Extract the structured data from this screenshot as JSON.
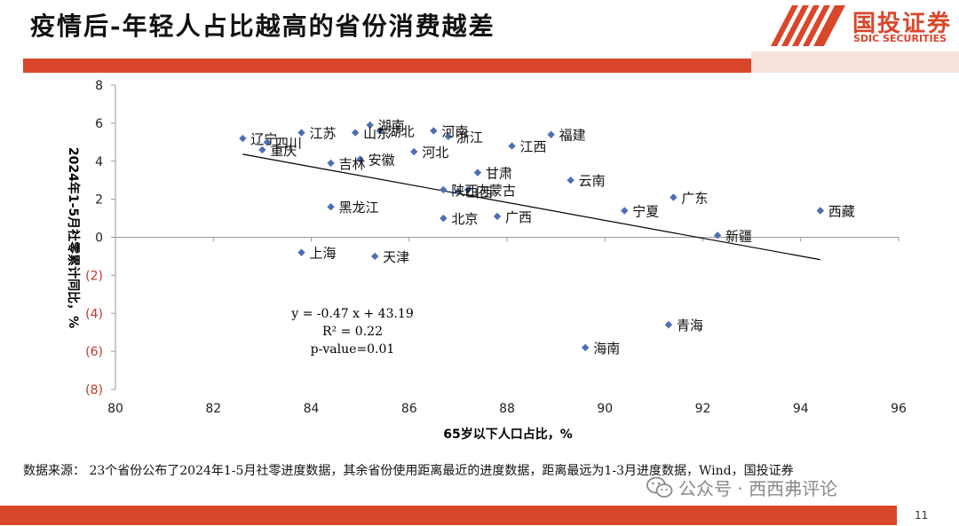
{
  "slide": {
    "title": "疫情后-年轻人占比越高的省份消费越差",
    "logo": {
      "cn": "国投证券",
      "en": "SDIC SECURITIES"
    },
    "source_note": "数据来源： 23个省份公布了2024年1-5月社零进度数据，其余省份使用距离最近的进度数据，距离最远为1-3月进度数据，Wind，国投证券",
    "watermark": "公众号 · 西西弗评论",
    "page_number": "11",
    "colors": {
      "accent": "#d9472b",
      "marker": "#4a6fb5",
      "negative_tick": "#c0392b"
    }
  },
  "chart_data": {
    "type": "scatter",
    "title": "",
    "xlabel": "65岁以下人口占比，%",
    "ylabel": "2024年1-5月社零累计同比，%",
    "xlim": [
      80,
      96
    ],
    "ylim": [
      -8,
      8
    ],
    "x_ticks": [
      {
        "value": 80,
        "label": "80"
      },
      {
        "value": 82,
        "label": "82"
      },
      {
        "value": 84,
        "label": "84"
      },
      {
        "value": 86,
        "label": "86"
      },
      {
        "value": 88,
        "label": "88"
      },
      {
        "value": 90,
        "label": "90"
      },
      {
        "value": 92,
        "label": "92"
      },
      {
        "value": 94,
        "label": "94"
      },
      {
        "value": 96,
        "label": "96"
      }
    ],
    "y_ticks": [
      {
        "value": 8,
        "label": "8"
      },
      {
        "value": 6,
        "label": "6"
      },
      {
        "value": 4,
        "label": "4"
      },
      {
        "value": 2,
        "label": "2"
      },
      {
        "value": 0,
        "label": "0"
      },
      {
        "value": -2,
        "label": "(2)"
      },
      {
        "value": -4,
        "label": "(4)"
      },
      {
        "value": -6,
        "label": "(6)"
      },
      {
        "value": -8,
        "label": "(8)"
      }
    ],
    "grid": false,
    "points": [
      {
        "name": "辽宁",
        "x": 82.6,
        "y": 5.2
      },
      {
        "name": "四川",
        "x": 83.1,
        "y": 5.0
      },
      {
        "name": "重庆",
        "x": 83.0,
        "y": 4.6
      },
      {
        "name": "江苏",
        "x": 83.8,
        "y": 5.5
      },
      {
        "name": "吉林",
        "x": 84.4,
        "y": 3.9
      },
      {
        "name": "黑龙江",
        "x": 84.4,
        "y": 1.6
      },
      {
        "name": "上海",
        "x": 83.8,
        "y": -0.8
      },
      {
        "name": "山东",
        "x": 84.9,
        "y": 5.5
      },
      {
        "name": "安徽",
        "x": 85.0,
        "y": 4.1
      },
      {
        "name": "湖南",
        "x": 85.2,
        "y": 5.9
      },
      {
        "name": "湖北",
        "x": 85.4,
        "y": 5.6
      },
      {
        "name": "天津",
        "x": 85.3,
        "y": -1.0
      },
      {
        "name": "河北",
        "x": 86.1,
        "y": 4.5
      },
      {
        "name": "河南",
        "x": 86.5,
        "y": 5.6
      },
      {
        "name": "浙江",
        "x": 86.8,
        "y": 5.3
      },
      {
        "name": "陕西",
        "x": 86.7,
        "y": 2.5
      },
      {
        "name": "内蒙古",
        "x": 87.2,
        "y": 2.5
      },
      {
        "name": "山西",
        "x": 87.0,
        "y": 2.4
      },
      {
        "name": "北京",
        "x": 86.7,
        "y": 1.0
      },
      {
        "name": "甘肃",
        "x": 87.4,
        "y": 3.4
      },
      {
        "name": "广西",
        "x": 87.8,
        "y": 1.1
      },
      {
        "name": "江西",
        "x": 88.1,
        "y": 4.8
      },
      {
        "name": "福建",
        "x": 88.9,
        "y": 5.4
      },
      {
        "name": "云南",
        "x": 89.3,
        "y": 3.0
      },
      {
        "name": "海南",
        "x": 89.6,
        "y": -5.8
      },
      {
        "name": "宁夏",
        "x": 90.4,
        "y": 1.4
      },
      {
        "name": "广东",
        "x": 91.4,
        "y": 2.1
      },
      {
        "name": "青海",
        "x": 91.3,
        "y": -4.6
      },
      {
        "name": "新疆",
        "x": 92.3,
        "y": 0.1
      },
      {
        "name": "西藏",
        "x": 94.4,
        "y": 1.4
      }
    ],
    "trendline": {
      "slope": -0.47,
      "intercept": 43.19,
      "x_range": [
        82.6,
        94.4
      ]
    },
    "annotation": [
      "y = -0.47 x + 43.19",
      "R² = 0.22",
      "p-value=0.01"
    ]
  }
}
